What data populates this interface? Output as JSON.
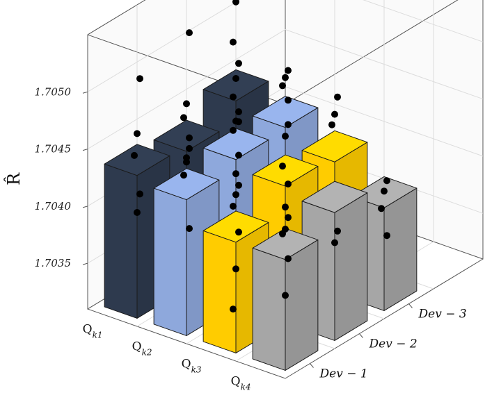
{
  "chart_data": {
    "type": "bar3d",
    "zlabel": "R̂",
    "zlim": [
      1.7031,
      1.7055
    ],
    "ztick_labels": [
      "1.7035",
      "1.7040",
      "1.7045",
      "1.7050"
    ],
    "ztick_values": [
      1.7035,
      1.704,
      1.7045,
      1.705
    ],
    "q_label_prefix": "Q",
    "q_label_subs": [
      "k1",
      "k2",
      "k3",
      "k4"
    ],
    "dev_labels": [
      "Dev − 1",
      "Dev − 2",
      "Dev − 3"
    ],
    "grid": true,
    "series": [
      {
        "values": [
          1.70435,
          1.7043,
          1.70448
        ],
        "color": "#2e3a4e"
      },
      {
        "values": [
          1.70429,
          1.70438,
          1.7044
        ],
        "color": "#8ea8dc"
      },
      {
        "values": [
          1.70407,
          1.7043,
          1.70425
        ],
        "color": "#ffcc00"
      },
      {
        "values": [
          1.70407,
          1.70422,
          1.704
        ],
        "color": "#a6a6a6"
      }
    ],
    "points": [
      [
        [
          1.70508,
          1.70458,
          1.70437,
          1.70407,
          1.70389
        ],
        [
          1.70522,
          1.70458,
          1.70444,
          1.7043,
          1.70407,
          1.70386
        ],
        [
          1.7054,
          1.70521,
          1.70484,
          1.70469,
          1.70454,
          1.70436,
          1.70418
        ]
      ],
      [
        [
          1.70462,
          1.70452,
          1.70435,
          1.70392
        ],
        [
          1.70468,
          1.70458,
          1.70448,
          1.7043,
          1.70412
        ],
        [
          1.70478,
          1.7047,
          1.70461,
          1.70452
        ]
      ],
      [
        [
          1.70445,
          1.70435,
          1.70423,
          1.70404,
          1.7037,
          1.70333
        ],
        [
          1.70472,
          1.7046,
          1.70432,
          1.7042,
          1.70398
        ],
        [
          1.7047,
          1.70453,
          1.70442
        ]
      ],
      [
        [
          1.70432,
          1.7042,
          1.70414,
          1.70396,
          1.70362
        ],
        [
          1.70394,
          1.70382
        ],
        [
          1.70412,
          1.70401,
          1.70384,
          1.70364
        ]
      ]
    ]
  }
}
